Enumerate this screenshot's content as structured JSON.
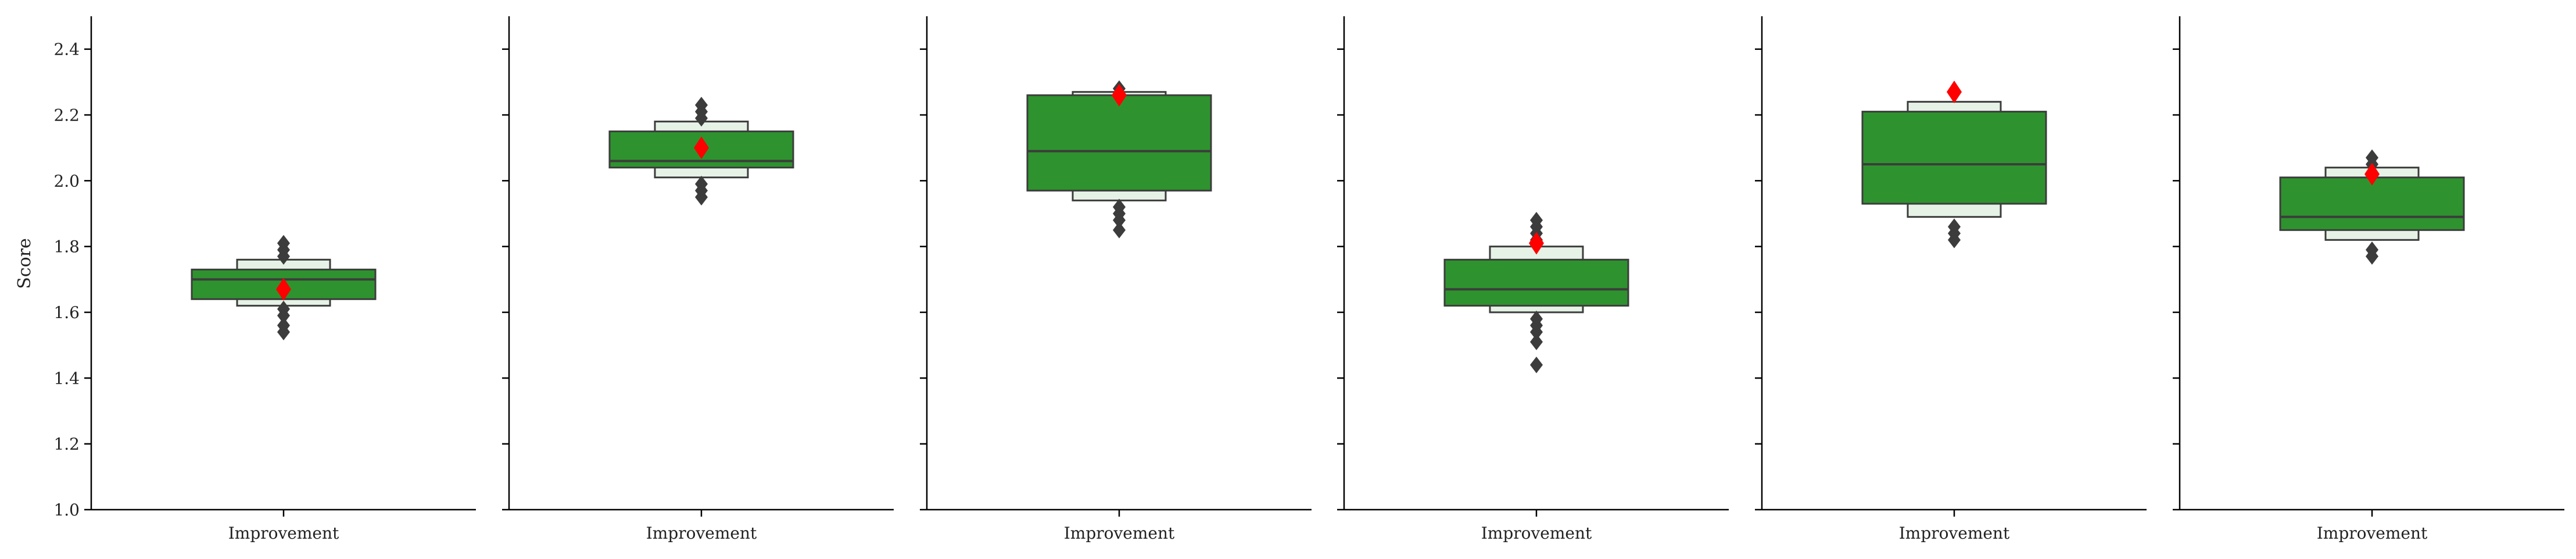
{
  "chart_data": {
    "type": "boxen",
    "ylabel": "Score",
    "ylim": [
      1.0,
      2.5
    ],
    "yticks": [
      "1.0",
      "1.2",
      "1.4",
      "1.6",
      "1.8",
      "2.0",
      "2.2",
      "2.4"
    ],
    "shared_y": true,
    "grid": false,
    "colors": {
      "box": "#2e932e",
      "box_light": "#e6f2e6",
      "edge": "#3c3c3c",
      "outlier": "#3c3c3c",
      "mean": "#ff0000"
    },
    "panels": [
      {
        "category": "Improvement",
        "median": 1.7,
        "mean": 1.67,
        "q1": 1.64,
        "q3": 1.73,
        "outer_lo": 1.62,
        "outer_hi": 1.76,
        "outliers": [
          1.54,
          1.56,
          1.59,
          1.61,
          1.77,
          1.79,
          1.81
        ]
      },
      {
        "category": "Improvement",
        "median": 2.06,
        "mean": 2.1,
        "q1": 2.04,
        "q3": 2.15,
        "outer_lo": 2.01,
        "outer_hi": 2.18,
        "outliers": [
          1.95,
          1.97,
          1.99,
          2.19,
          2.21,
          2.23
        ]
      },
      {
        "category": "Improvement",
        "median": 2.09,
        "mean": 2.26,
        "q1": 1.97,
        "q3": 2.26,
        "outer_lo": 1.94,
        "outer_hi": 2.27,
        "outliers": [
          1.85,
          1.88,
          1.9,
          1.92,
          2.28
        ]
      },
      {
        "category": "Improvement",
        "median": 1.67,
        "mean": 1.81,
        "q1": 1.62,
        "q3": 1.76,
        "outer_lo": 1.6,
        "outer_hi": 1.8,
        "outliers": [
          1.44,
          1.51,
          1.54,
          1.56,
          1.58,
          1.82,
          1.84,
          1.86,
          1.88
        ]
      },
      {
        "category": "Improvement",
        "median": 2.05,
        "mean": 2.27,
        "q1": 1.93,
        "q3": 2.21,
        "outer_lo": 1.89,
        "outer_hi": 2.24,
        "outliers": [
          1.82,
          1.84,
          1.86
        ]
      },
      {
        "category": "Improvement",
        "median": 1.89,
        "mean": 2.02,
        "q1": 1.85,
        "q3": 2.01,
        "outer_lo": 1.82,
        "outer_hi": 2.04,
        "outliers": [
          1.77,
          1.79,
          2.05,
          2.07
        ]
      }
    ]
  }
}
